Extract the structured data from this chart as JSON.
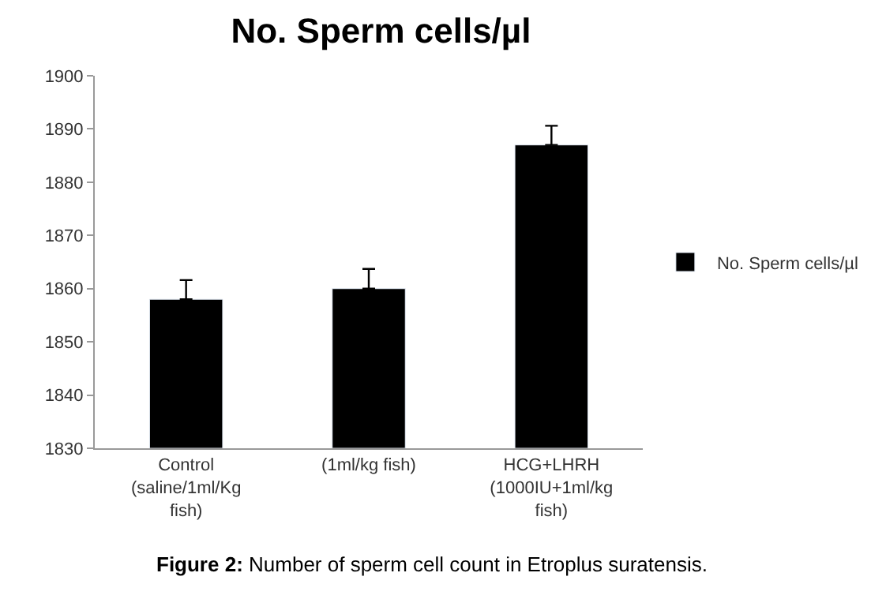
{
  "chart_data": {
    "type": "bar",
    "title": "No. Sperm cells/µl",
    "categories": [
      "Control (saline/1ml/Kg fish)",
      "(1ml/kg fish)",
      "HCG+LHRH (1000IU+1ml/kg fish)"
    ],
    "series": [
      {
        "name": "No. Sperm cells/µl",
        "color": "#000000",
        "values": [
          1858,
          1860,
          1887
        ],
        "errors": [
          [
            1858,
            1861.6
          ],
          [
            1860,
            1863.7
          ],
          [
            1887,
            1890.6
          ]
        ]
      }
    ],
    "ylim": [
      1830,
      1900
    ],
    "yticks": [
      1830,
      1840,
      1850,
      1860,
      1870,
      1880,
      1890,
      1900
    ],
    "grid": false,
    "legend": "right",
    "annotations": [
      "Figure 2: Number of sperm cell count in Etroplus suratensis."
    ]
  }
}
